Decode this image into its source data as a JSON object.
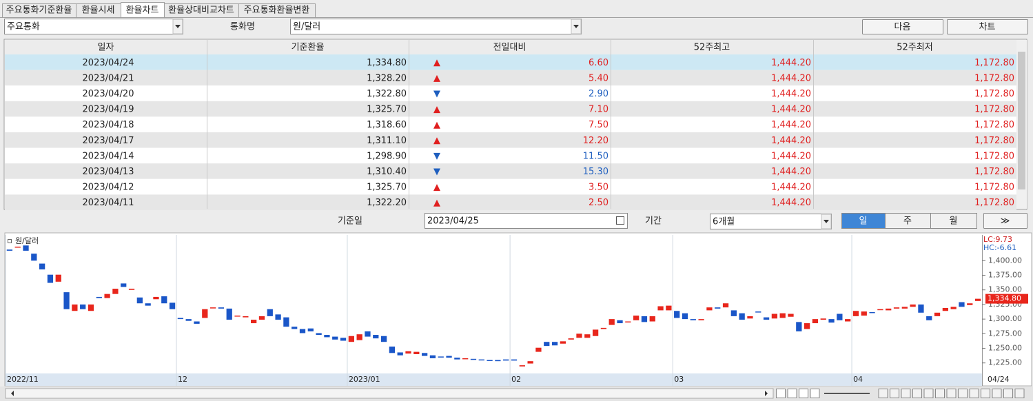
{
  "tabs": [
    "주요통화기준환율",
    "환율시세",
    "환율차트",
    "환율상대비교차트",
    "주요통화환율변환"
  ],
  "active_tab": 2,
  "controls": {
    "market_select": "주요통화",
    "currency_label": "통화명",
    "currency_select": "원/달러",
    "next_button": "다음",
    "chart_button": "차트",
    "date_label": "기준일",
    "date_input": "2023/04/25",
    "period_label": "기간",
    "period_select": "6개월",
    "interval_buttons": [
      "일",
      "주",
      "월"
    ],
    "active_interval": 0,
    "go_button": "≫"
  },
  "table": {
    "columns": [
      "일자",
      "기준환율",
      "전일대비",
      "52주최고",
      "52주최저"
    ],
    "selected_row": 0,
    "rows": [
      {
        "date": "2023/04/24",
        "rate": "1,334.80",
        "direction": "up",
        "change": "6.60",
        "high52": "1,444.20",
        "low52": "1,172.80"
      },
      {
        "date": "2023/04/21",
        "rate": "1,328.20",
        "direction": "up",
        "change": "5.40",
        "high52": "1,444.20",
        "low52": "1,172.80"
      },
      {
        "date": "2023/04/20",
        "rate": "1,322.80",
        "direction": "down",
        "change": "2.90",
        "high52": "1,444.20",
        "low52": "1,172.80"
      },
      {
        "date": "2023/04/19",
        "rate": "1,325.70",
        "direction": "up",
        "change": "7.10",
        "high52": "1,444.20",
        "low52": "1,172.80"
      },
      {
        "date": "2023/04/18",
        "rate": "1,318.60",
        "direction": "up",
        "change": "7.50",
        "high52": "1,444.20",
        "low52": "1,172.80"
      },
      {
        "date": "2023/04/17",
        "rate": "1,311.10",
        "direction": "up",
        "change": "12.20",
        "high52": "1,444.20",
        "low52": "1,172.80"
      },
      {
        "date": "2023/04/14",
        "rate": "1,298.90",
        "direction": "down",
        "change": "11.50",
        "high52": "1,444.20",
        "low52": "1,172.80"
      },
      {
        "date": "2023/04/13",
        "rate": "1,310.40",
        "direction": "down",
        "change": "15.30",
        "high52": "1,444.20",
        "low52": "1,172.80"
      },
      {
        "date": "2023/04/12",
        "rate": "1,325.70",
        "direction": "up",
        "change": "3.50",
        "high52": "1,444.20",
        "low52": "1,172.80"
      },
      {
        "date": "2023/04/11",
        "rate": "1,322.20",
        "direction": "up",
        "change": "2.50",
        "high52": "1,444.20",
        "low52": "1,172.80"
      }
    ]
  },
  "chart_data": {
    "type": "candlestick",
    "legend": "원/달러",
    "up_color": "#e8261c",
    "down_color": "#1a56c8",
    "indicators": [
      "LC:9.73",
      "HC:-6.61"
    ],
    "last_value": {
      "value": 1334.8,
      "label": "1,334.80"
    },
    "x_end_label": "04/24",
    "opens": [
      1419,
      1424,
      1426,
      1412,
      1395,
      1376,
      1364,
      1346,
      1314,
      1325,
      1314,
      1338,
      1336,
      1343,
      1361,
      1350,
      1337,
      1327,
      1334,
      1339,
      1328,
      1302,
      1300,
      1296,
      1302,
      1320,
      1320,
      1318,
      1305,
      1303,
      1293,
      1299,
      1317,
      1308,
      1303,
      1287,
      1283,
      1284,
      1276,
      1273,
      1270,
      1268,
      1261,
      1264,
      1279,
      1273,
      1271,
      1253,
      1243,
      1241,
      1240,
      1242,
      1238,
      1236,
      1237,
      1234,
      1233,
      1232,
      1231,
      1230,
      1230,
      1231,
      1231,
      1219,
      1224,
      1244,
      1261,
      1261,
      1258,
      1265,
      1268,
      1268,
      1271,
      1283,
      1290,
      1298,
      1295,
      1298,
      1305,
      1296,
      1315,
      1315,
      1314,
      1310,
      1300,
      1298,
      1315,
      1320,
      1320,
      1315,
      1310,
      1301,
      1313,
      1303,
      1301,
      1302,
      1304,
      1295,
      1283,
      1293,
      1299,
      1300,
      1309,
      1296,
      1305,
      1306,
      1312,
      1316,
      1315,
      1318,
      1318,
      1321,
      1325,
      1305,
      1305,
      1314,
      1317,
      1329,
      1324,
      1331
    ],
    "closes": [
      1417,
      1424,
      1417,
      1400,
      1385,
      1362,
      1376,
      1317,
      1325,
      1317,
      1325,
      1336,
      1343,
      1352,
      1355,
      1352,
      1327,
      1323,
      1338,
      1327,
      1317,
      1300,
      1297,
      1292,
      1317,
      1320,
      1318,
      1299,
      1306,
      1305,
      1299,
      1305,
      1305,
      1299,
      1287,
      1283,
      1276,
      1279,
      1273,
      1269,
      1265,
      1263,
      1271,
      1274,
      1270,
      1267,
      1261,
      1242,
      1238,
      1245,
      1244,
      1237,
      1233,
      1235,
      1234,
      1231,
      1233,
      1231,
      1230,
      1229,
      1228,
      1229,
      1229,
      1221,
      1228,
      1251,
      1254,
      1255,
      1262,
      1267,
      1275,
      1274,
      1282,
      1285,
      1300,
      1293,
      1296,
      1306,
      1295,
      1305,
      1322,
      1323,
      1302,
      1300,
      1298,
      1300,
      1320,
      1318,
      1327,
      1305,
      1299,
      1305,
      1312,
      1299,
      1309,
      1310,
      1309,
      1279,
      1293,
      1300,
      1301,
      1294,
      1298,
      1300,
      1314,
      1313,
      1311,
      1317,
      1318,
      1320,
      1321,
      1325,
      1311,
      1298,
      1311,
      1319,
      1321,
      1321,
      1327,
      1334.8
    ],
    "xlim": [
      -0.5,
      119.5
    ],
    "xticks": [
      {
        "value": -0.5,
        "label": "2022/11"
      },
      {
        "value": 20.5,
        "label": "12"
      },
      {
        "value": 41.5,
        "label": "2023/01"
      },
      {
        "value": 61.5,
        "label": "02"
      },
      {
        "value": 81.5,
        "label": "03"
      },
      {
        "value": 103.5,
        "label": "04"
      }
    ],
    "ylim": [
      1207,
      1444
    ],
    "yticks": [
      {
        "value": 1225,
        "label": "1,225.00"
      },
      {
        "value": 1250,
        "label": "1,250.00"
      },
      {
        "value": 1275,
        "label": "1,275.00"
      },
      {
        "value": 1300,
        "label": "1,300.00"
      },
      {
        "value": 1325,
        "label": "1,325.00"
      },
      {
        "value": 1350,
        "label": "1,350.00"
      },
      {
        "value": 1375,
        "label": "1,375.00"
      },
      {
        "value": 1400,
        "label": "1,400.00"
      }
    ]
  }
}
